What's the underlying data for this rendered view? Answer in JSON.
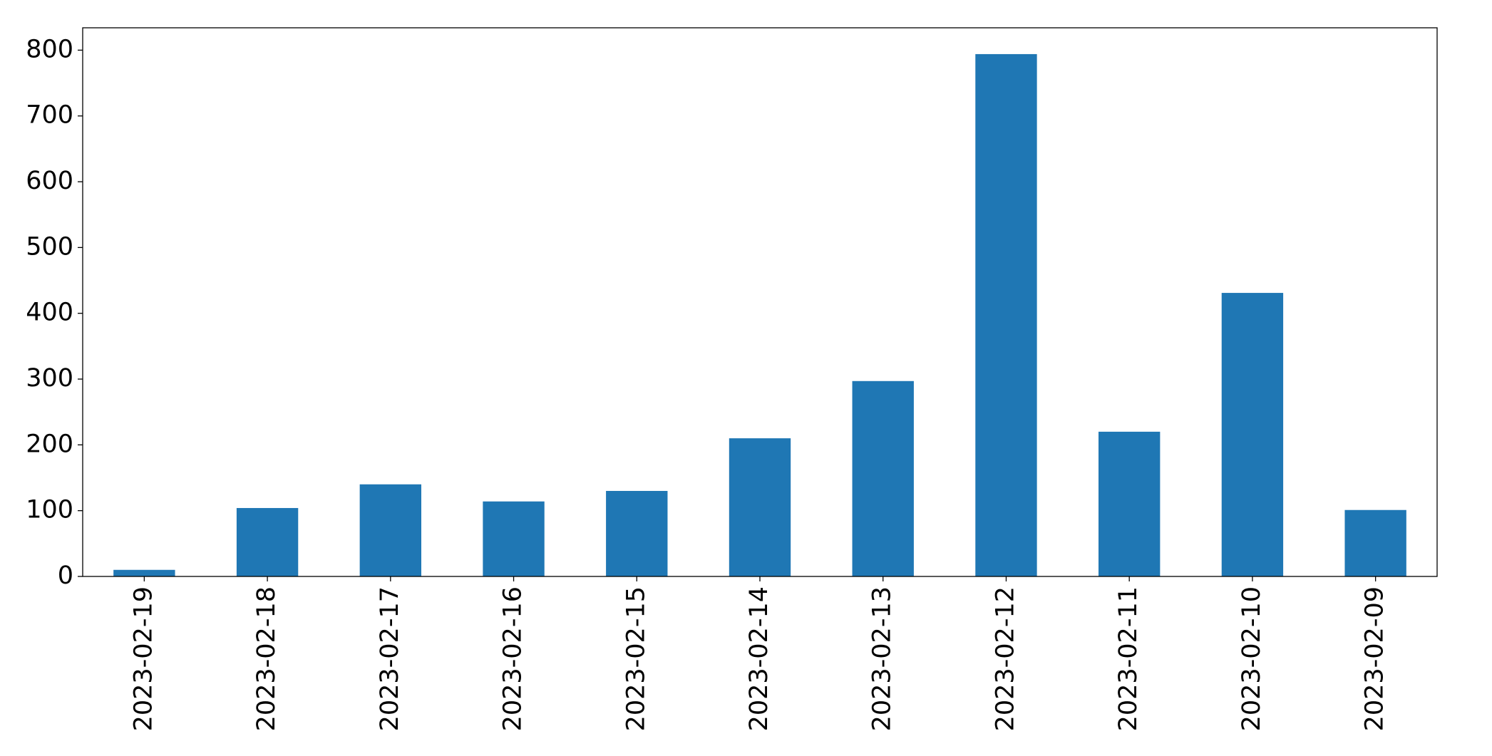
{
  "chart_data": {
    "type": "bar",
    "categories": [
      "2023-02-19",
      "2023-02-18",
      "2023-02-17",
      "2023-02-16",
      "2023-02-15",
      "2023-02-14",
      "2023-02-13",
      "2023-02-12",
      "2023-02-11",
      "2023-02-10",
      "2023-02-09"
    ],
    "values": [
      10,
      104,
      140,
      114,
      130,
      210,
      297,
      794,
      220,
      431,
      101
    ],
    "color": "#1f77b4",
    "ylim": [
      0,
      834
    ],
    "yticks": [
      0,
      100,
      200,
      300,
      400,
      500,
      600,
      700,
      800
    ],
    "grid": false
  }
}
